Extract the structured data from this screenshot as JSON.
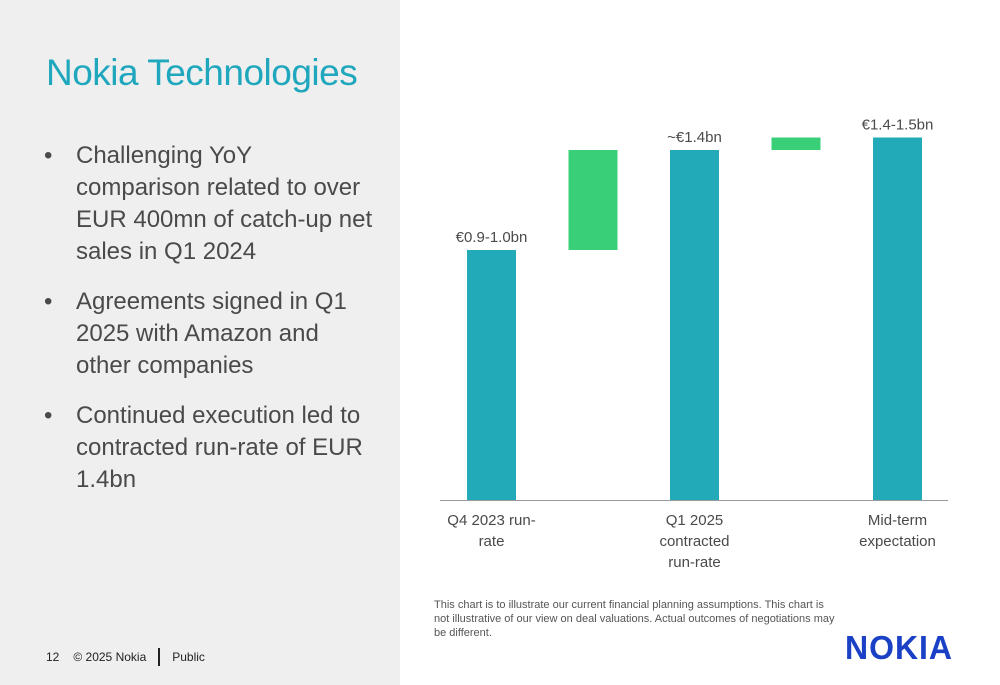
{
  "slide": {
    "title": "Nokia Technologies",
    "bullets": [
      "Challenging YoY comparison related to over EUR 400mn of catch-up net sales in Q1 2024",
      "Agreements signed in Q1 2025 with Amazon and other companies",
      "Continued execution led to contracted run-rate of EUR 1.4bn"
    ],
    "bullet_marker": "•",
    "footer": {
      "page_number": "12",
      "copyright": "© 2025 Nokia",
      "classification": "Public"
    },
    "disclaimer": "This chart is to illustrate our current financial planning assumptions. This chart is not illustrative of our view on deal valuations. Actual outcomes of negotiations may be different.",
    "logo_text": "NOKIA"
  },
  "colors": {
    "total_bar": "#22aab8",
    "increment_bar": "#38cf78",
    "title": "#1fa7bd",
    "logo": "#1a40c6",
    "left_panel_bg": "#efefef",
    "axis": "#999999"
  },
  "chart_data": {
    "type": "bar",
    "subtype": "waterfall",
    "unit": "€bn",
    "ylim": [
      0,
      1.5
    ],
    "grid": false,
    "legend": "none",
    "categories": [
      [
        "Q4 2023 run-",
        "rate"
      ],
      [],
      [
        "Q1 2025",
        "contracted",
        "run-rate"
      ],
      [],
      [
        "Mid-term",
        "expectation"
      ]
    ],
    "bars": [
      {
        "kind": "total",
        "start": 0,
        "end": 1.0,
        "label": "€0.9-1.0bn"
      },
      {
        "kind": "increment",
        "start": 1.0,
        "end": 1.4,
        "label": ""
      },
      {
        "kind": "total",
        "start": 0,
        "end": 1.4,
        "label": "~€1.4bn"
      },
      {
        "kind": "increment",
        "start": 1.4,
        "end": 1.45,
        "label": ""
      },
      {
        "kind": "total",
        "start": 0,
        "end": 1.45,
        "label": "€1.4-1.5bn"
      }
    ]
  }
}
